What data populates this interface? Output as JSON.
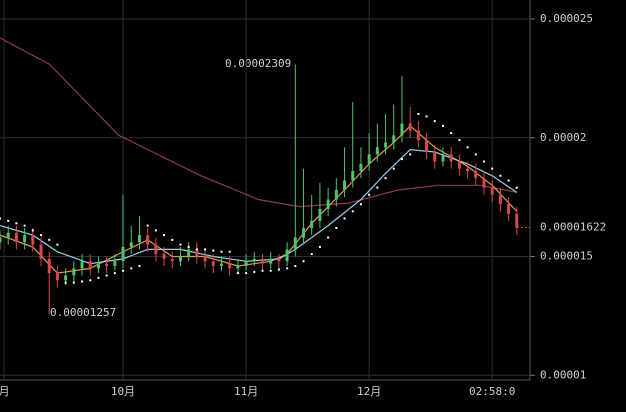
{
  "chart_data": {
    "type": "candlestick",
    "x": [
      0,
      2,
      4,
      6,
      8,
      10,
      12,
      14,
      16,
      18,
      20,
      22,
      24,
      26,
      28,
      30,
      32,
      34,
      36,
      38,
      40,
      42,
      44,
      46,
      48,
      50,
      52,
      54,
      56,
      58,
      60,
      62,
      64,
      66,
      68,
      70,
      72,
      74,
      76,
      78,
      80,
      82,
      84,
      86,
      88,
      90,
      92,
      94,
      96,
      98,
      100,
      102,
      104,
      106,
      108,
      110,
      112,
      114,
      116,
      118,
      120,
      122,
      124,
      126
    ],
    "open": [
      1.56e-05,
      1.58e-05,
      1.6e-05,
      1.56e-05,
      1.59e-05,
      1.55e-05,
      1.49e-05,
      1.43e-05,
      1.4e-05,
      1.42e-05,
      1.45e-05,
      1.48e-05,
      1.45e-05,
      1.47e-05,
      1.46e-05,
      1.48e-05,
      1.54e-05,
      1.56e-05,
      1.59e-05,
      1.55e-05,
      1.51e-05,
      1.49e-05,
      1.48e-05,
      1.5e-05,
      1.53e-05,
      1.5e-05,
      1.48e-05,
      1.46e-05,
      1.47e-05,
      1.45e-05,
      1.46e-05,
      1.48e-05,
      1.49e-05,
      1.47e-05,
      1.49e-05,
      1.48e-05,
      1.53e-05,
      1.58e-05,
      1.62e-05,
      1.65e-05,
      1.7e-05,
      1.74e-05,
      1.78e-05,
      1.82e-05,
      1.86e-05,
      1.89e-05,
      1.93e-05,
      1.96e-05,
      1.98e-05,
      2.01e-05,
      2.06e-05,
      2.03e-05,
      1.99e-05,
      1.94e-05,
      1.9e-05,
      1.93e-05,
      1.9e-05,
      1.87e-05,
      1.86e-05,
      1.83e-05,
      1.79e-05,
      1.76e-05,
      1.72e-05,
      1.68e-05
    ],
    "high": [
      1.61e-05,
      1.63e-05,
      1.63e-05,
      1.62e-05,
      1.62e-05,
      1.58e-05,
      1.52e-05,
      1.46e-05,
      1.45e-05,
      1.48e-05,
      1.51e-05,
      1.51e-05,
      1.5e-05,
      1.5e-05,
      1.51e-05,
      1.76e-05,
      1.63e-05,
      1.67e-05,
      1.62e-05,
      1.58e-05,
      1.54e-05,
      1.52e-05,
      1.54e-05,
      1.56e-05,
      1.56e-05,
      1.53e-05,
      1.51e-05,
      1.5e-05,
      1.5e-05,
      1.49e-05,
      1.51e-05,
      1.52e-05,
      1.51e-05,
      1.52e-05,
      1.51e-05,
      1.56e-05,
      2.309e-05,
      1.87e-05,
      1.76e-05,
      1.81e-05,
      1.79e-05,
      1.83e-05,
      1.96e-05,
      2.15e-05,
      1.96e-05,
      2.02e-05,
      2.06e-05,
      2.1e-05,
      2.14e-05,
      2.26e-05,
      2.13e-05,
      2.07e-05,
      2.02e-05,
      1.97e-05,
      1.96e-05,
      1.96e-05,
      1.93e-05,
      1.9e-05,
      1.89e-05,
      1.86e-05,
      1.82e-05,
      1.79e-05,
      1.75e-05,
      1.71e-05
    ],
    "low": [
      1.53e-05,
      1.55e-05,
      1.53e-05,
      1.53e-05,
      1.52e-05,
      1.46e-05,
      1.257e-05,
      1.37e-05,
      1.38e-05,
      1.39e-05,
      1.42e-05,
      1.42e-05,
      1.43e-05,
      1.43e-05,
      1.44e-05,
      1.45e-05,
      1.51e-05,
      1.53e-05,
      1.52e-05,
      1.48e-05,
      1.46e-05,
      1.45e-05,
      1.46e-05,
      1.48e-05,
      1.47e-05,
      1.45e-05,
      1.43e-05,
      1.44e-05,
      1.42e-05,
      1.43e-05,
      1.44e-05,
      1.46e-05,
      1.44e-05,
      1.45e-05,
      1.45e-05,
      1.46e-05,
      1.5e-05,
      1.55e-05,
      1.59e-05,
      1.62e-05,
      1.67e-05,
      1.71e-05,
      1.75e-05,
      1.79e-05,
      1.83e-05,
      1.86e-05,
      1.9e-05,
      1.93e-05,
      1.95e-05,
      1.98e-05,
      2e-05,
      1.96e-05,
      1.91e-05,
      1.87e-05,
      1.88e-05,
      1.87e-05,
      1.84e-05,
      1.83e-05,
      1.8e-05,
      1.76e-05,
      1.73e-05,
      1.69e-05,
      1.65e-05,
      1.59e-05
    ],
    "close": [
      1.58e-05,
      1.6e-05,
      1.56e-05,
      1.59e-05,
      1.55e-05,
      1.49e-05,
      1.43e-05,
      1.4e-05,
      1.42e-05,
      1.45e-05,
      1.48e-05,
      1.45e-05,
      1.47e-05,
      1.46e-05,
      1.48e-05,
      1.54e-05,
      1.56e-05,
      1.59e-05,
      1.55e-05,
      1.51e-05,
      1.49e-05,
      1.48e-05,
      1.5e-05,
      1.53e-05,
      1.5e-05,
      1.48e-05,
      1.46e-05,
      1.47e-05,
      1.45e-05,
      1.46e-05,
      1.48e-05,
      1.49e-05,
      1.47e-05,
      1.49e-05,
      1.48e-05,
      1.53e-05,
      1.58e-05,
      1.62e-05,
      1.65e-05,
      1.7e-05,
      1.74e-05,
      1.78e-05,
      1.82e-05,
      1.86e-05,
      1.89e-05,
      1.93e-05,
      1.96e-05,
      1.98e-05,
      2.01e-05,
      2.06e-05,
      2.03e-05,
      1.99e-05,
      1.94e-05,
      1.9e-05,
      1.93e-05,
      1.9e-05,
      1.87e-05,
      1.86e-05,
      1.83e-05,
      1.79e-05,
      1.76e-05,
      1.72e-05,
      1.68e-05,
      1.622e-05
    ],
    "up_color": "#4fc36a",
    "down_color": "#d9474c",
    "sar": {
      "color": "#ffffff",
      "values": [
        1.66e-05,
        1.65e-05,
        1.64e-05,
        1.63e-05,
        1.61e-05,
        1.59e-05,
        1.57e-05,
        1.55e-05,
        1.39e-05,
        1.39e-05,
        1.395e-05,
        1.4e-05,
        1.41e-05,
        1.42e-05,
        1.43e-05,
        1.44e-05,
        1.45e-05,
        1.46e-05,
        1.63e-05,
        1.61e-05,
        1.59e-05,
        1.57e-05,
        1.55e-05,
        1.54e-05,
        1.53e-05,
        1.53e-05,
        1.525e-05,
        1.52e-05,
        1.52e-05,
        1.43e-05,
        1.43e-05,
        1.435e-05,
        1.44e-05,
        1.44e-05,
        1.445e-05,
        1.45e-05,
        1.46e-05,
        1.48e-05,
        1.51e-05,
        1.54e-05,
        1.58e-05,
        1.62e-05,
        1.66e-05,
        1.69e-05,
        1.72e-05,
        1.76e-05,
        1.79e-05,
        1.83e-05,
        1.87e-05,
        1.91e-05,
        1.93e-05,
        2.1e-05,
        2.09e-05,
        2.07e-05,
        2.05e-05,
        2.02e-05,
        1.99e-05,
        1.96e-05,
        1.93e-05,
        1.9e-05,
        1.87e-05,
        1.84e-05,
        1.82e-05,
        1.79e-05
      ]
    },
    "lines": [
      {
        "color": "#8e3b4e",
        "x": [
          0,
          12,
          29,
          49,
          63,
          73,
          85,
          97,
          107,
          117,
          126
        ],
        "values": [
          2.42e-05,
          2.31e-05,
          2.01e-05,
          1.84e-05,
          1.74e-05,
          1.71e-05,
          1.725e-05,
          1.78e-05,
          1.8e-05,
          1.8e-05,
          1.77e-05
        ]
      },
      {
        "color": "#e59a4a",
        "x": [
          0,
          8,
          14,
          22,
          30,
          36,
          42,
          50,
          58,
          66,
          70,
          76,
          84,
          90,
          96,
          100,
          106,
          114,
          120,
          126
        ],
        "values": [
          1.59e-05,
          1.54e-05,
          1.43e-05,
          1.45e-05,
          1.52e-05,
          1.57e-05,
          1.5e-05,
          1.5e-05,
          1.46e-05,
          1.48e-05,
          1.51e-05,
          1.64e-05,
          1.78e-05,
          1.89e-05,
          1.98e-05,
          2.05e-05,
          1.96e-05,
          1.88e-05,
          1.8e-05,
          1.69e-05
        ]
      },
      {
        "color": "#8fd3e6",
        "x": [
          0,
          8,
          14,
          22,
          30,
          36,
          44,
          52,
          60,
          68,
          72,
          80,
          88,
          94,
          100,
          106,
          114,
          120,
          126
        ],
        "values": [
          1.63e-05,
          1.59e-05,
          1.52e-05,
          1.47e-05,
          1.49e-05,
          1.53e-05,
          1.53e-05,
          1.5e-05,
          1.48e-05,
          1.49e-05,
          1.53e-05,
          1.63e-05,
          1.74e-05,
          1.85e-05,
          1.95e-05,
          1.94e-05,
          1.89e-05,
          1.84e-05,
          1.77e-05
        ]
      }
    ],
    "annotations": {
      "high": 2.309e-05,
      "low": 1.257e-05,
      "last": 1.622e-05,
      "last_color": "#d9474c"
    },
    "xlim": [
      0,
      128
    ],
    "xticks": [
      {
        "value": 1,
        "label": "月"
      },
      {
        "value": 30,
        "label": "10月"
      },
      {
        "value": 60,
        "label": "11月"
      },
      {
        "value": 90,
        "label": "12月"
      },
      {
        "value": 120,
        "label": "02:58:0"
      }
    ],
    "ylim": [
      9.8e-06,
      2.58e-05
    ],
    "yticks": [
      1e-05,
      1.5e-05,
      2e-05,
      2.5e-05
    ],
    "grid": true
  }
}
